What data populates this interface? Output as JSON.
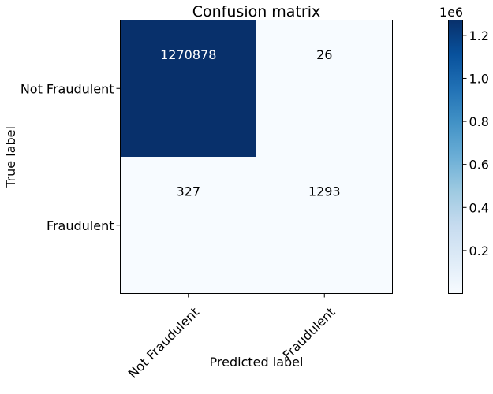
{
  "chart_data": {
    "type": "heatmap",
    "title": "Confusion matrix",
    "xlabel": "Predicted label",
    "ylabel": "True label",
    "x_categories": [
      "Not Fraudulent",
      "Fraudulent"
    ],
    "y_categories": [
      "Not Fraudulent",
      "Fraudulent"
    ],
    "matrix": [
      [
        1270878,
        26
      ],
      [
        327,
        1293
      ]
    ],
    "cell_labels": [
      [
        "1270878",
        "26"
      ],
      [
        "327",
        "1293"
      ]
    ],
    "colormap": "Blues",
    "colormap_min": "#f7fbff",
    "colormap_max": "#08306b",
    "colorbar": {
      "range": [
        26,
        1270878
      ],
      "ticks": [
        0.2,
        0.4,
        0.6,
        0.8,
        1.0,
        1.2
      ],
      "tick_labels": [
        "0.2",
        "0.4",
        "0.6",
        "0.8",
        "1.0",
        "1.2"
      ],
      "offset_label": "1e6"
    }
  }
}
